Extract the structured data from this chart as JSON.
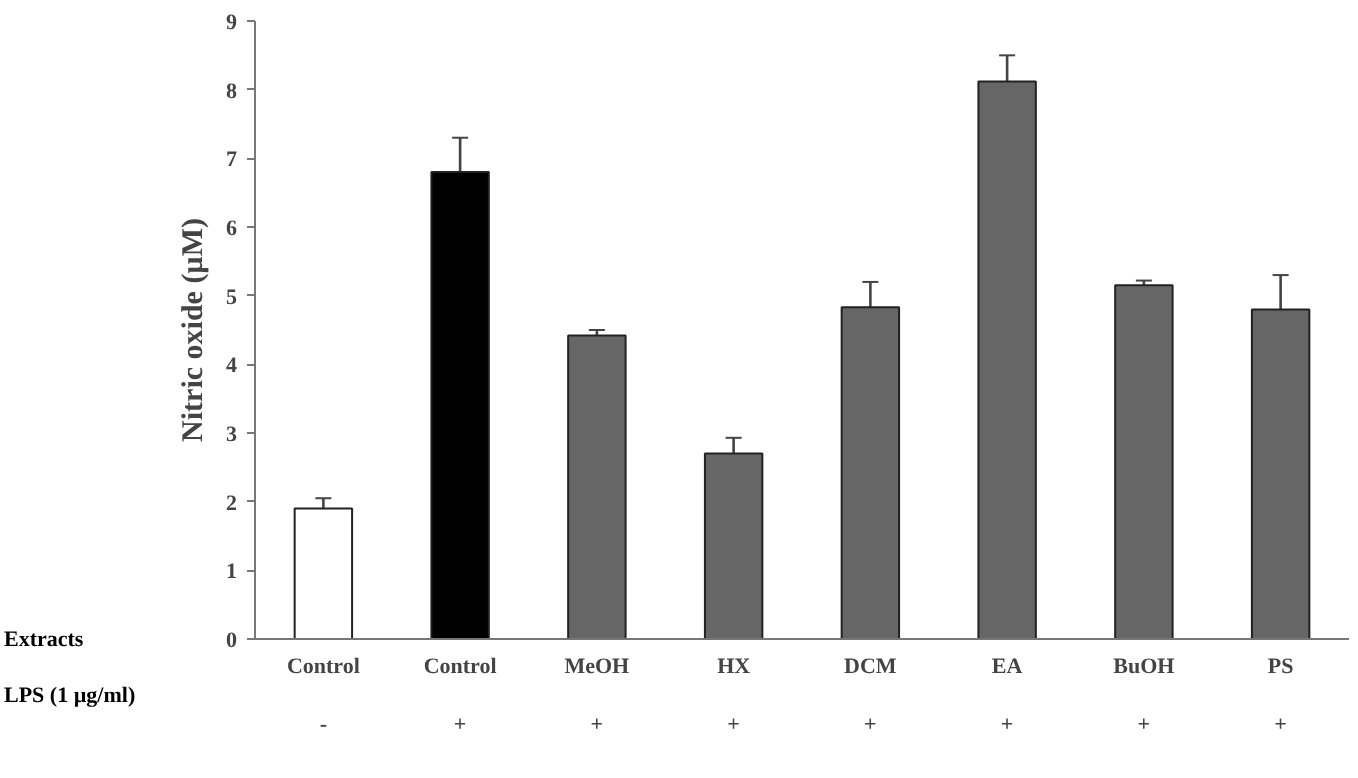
{
  "chart_data": {
    "type": "bar",
    "ylabel": "Nitric oxide (µM)",
    "categories": [
      "Control\n\n-",
      "Control\n\n+",
      "MeOH\n\n+",
      "HX\n\n+",
      "DCM\n\n+",
      "EA\n\n+",
      "BuOH\n\n+",
      "PS\n\n+"
    ],
    "values": [
      1.9,
      6.8,
      4.42,
      2.7,
      4.83,
      8.12,
      5.15,
      4.8
    ],
    "errors": [
      [
        1.9,
        2.05
      ],
      [
        6.8,
        7.3
      ],
      [
        4.42,
        4.5
      ],
      [
        2.7,
        2.93
      ],
      [
        4.83,
        5.2
      ],
      [
        8.12,
        8.5
      ],
      [
        5.15,
        5.22
      ],
      [
        4.8,
        5.3
      ]
    ],
    "colors": [
      "#ffffff",
      "#000000",
      "#666666",
      "#666666",
      "#666666",
      "#666666",
      "#666666",
      "#666666"
    ],
    "ylim": [
      0,
      9
    ],
    "yticks": [
      0,
      1,
      2,
      3,
      4,
      5,
      6,
      7,
      8,
      9
    ],
    "grid": false,
    "annotations": [
      "Extracts",
      "LPS (1 µg/ml)"
    ]
  }
}
